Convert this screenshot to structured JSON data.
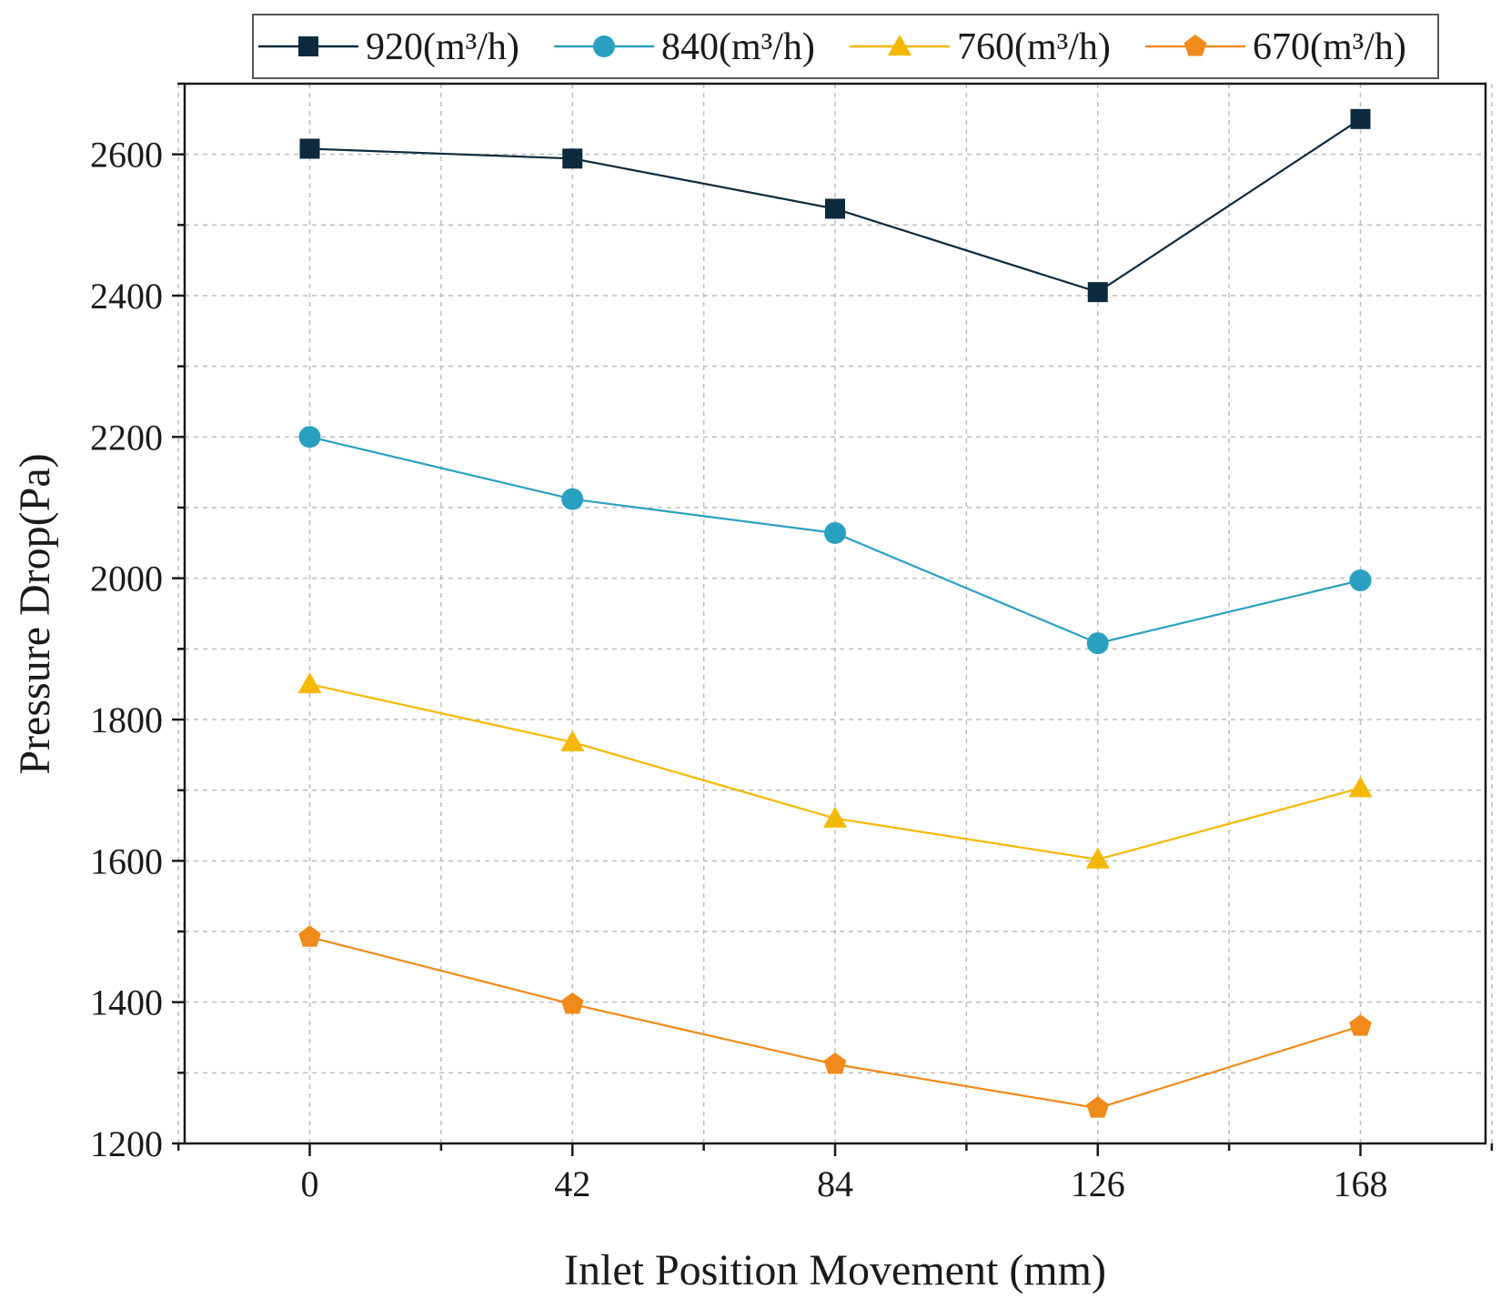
{
  "chart_data": {
    "type": "line",
    "title": "",
    "xlabel": "Inlet Position Movement (mm)",
    "ylabel": "Pressure Drop(Pa)",
    "x": [
      0,
      42,
      84,
      126,
      168
    ],
    "x_tick_labels": [
      "0",
      "42",
      "84",
      "126",
      "168"
    ],
    "xlim": [
      -20,
      188
    ],
    "ylim": [
      1200,
      2700
    ],
    "y_ticks": [
      1200,
      1400,
      1600,
      1800,
      2000,
      2200,
      2400,
      2600
    ],
    "y_tick_labels": [
      "1200",
      "1400",
      "1600",
      "1800",
      "2000",
      "2200",
      "2400",
      "2600"
    ],
    "grid": true,
    "legend_position": "top",
    "series": [
      {
        "name": "920(m³/h)",
        "marker": "square",
        "color": "#0d2a3e",
        "values": [
          2608,
          2594,
          2523,
          2405,
          2650
        ]
      },
      {
        "name": "840(m³/h)",
        "marker": "circle",
        "color": "#2aa0c0",
        "values": [
          2200,
          2112,
          2064,
          1908,
          1997
        ]
      },
      {
        "name": "760(m³/h)",
        "marker": "triangle",
        "color": "#f5b800",
        "values": [
          1850,
          1768,
          1660,
          1602,
          1703
        ]
      },
      {
        "name": "670(m³/h)",
        "marker": "pentagon",
        "color": "#f08a1a",
        "values": [
          1492,
          1397,
          1312,
          1250,
          1366
        ]
      }
    ]
  }
}
